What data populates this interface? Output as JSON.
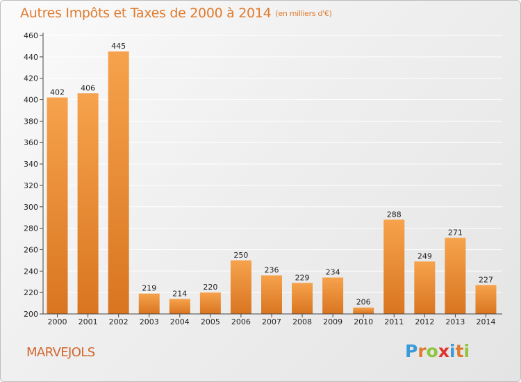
{
  "header": {
    "title": "Autres Impôts et Taxes de 2000 à 2014",
    "unit": "(en milliers d'€)"
  },
  "footer": {
    "location": "MARVEJOLS",
    "brand_letters": [
      "P",
      "r",
      "o",
      "x",
      "i",
      "t",
      "i"
    ],
    "brand_colors": [
      "#3a9ad9",
      "#e07a2c",
      "#8dc63f",
      "#e0312c",
      "#3a9ad9",
      "#e07a2c",
      "#8dc63f"
    ]
  },
  "colors": {
    "bar_light": "#f6a24c",
    "bar_dark": "#d97521",
    "title": "#e07a2c",
    "grid": "#ffffff",
    "axis": "#444444"
  },
  "chart_data": {
    "type": "bar",
    "title": "Autres Impôts et Taxes de 2000 à 2014",
    "subtitle": "(en milliers d'€)",
    "categories": [
      "2000",
      "2001",
      "2002",
      "2003",
      "2004",
      "2005",
      "2006",
      "2007",
      "2008",
      "2009",
      "2010",
      "2011",
      "2012",
      "2013",
      "2014"
    ],
    "values": [
      402,
      406,
      445,
      219,
      214,
      220,
      250,
      236,
      229,
      234,
      206,
      288,
      249,
      271,
      227
    ],
    "ylim": [
      200,
      460
    ],
    "yticks": [
      200,
      220,
      240,
      260,
      280,
      300,
      320,
      340,
      360,
      380,
      400,
      420,
      440,
      460
    ],
    "grid": true,
    "xlabel": "",
    "ylabel": ""
  }
}
